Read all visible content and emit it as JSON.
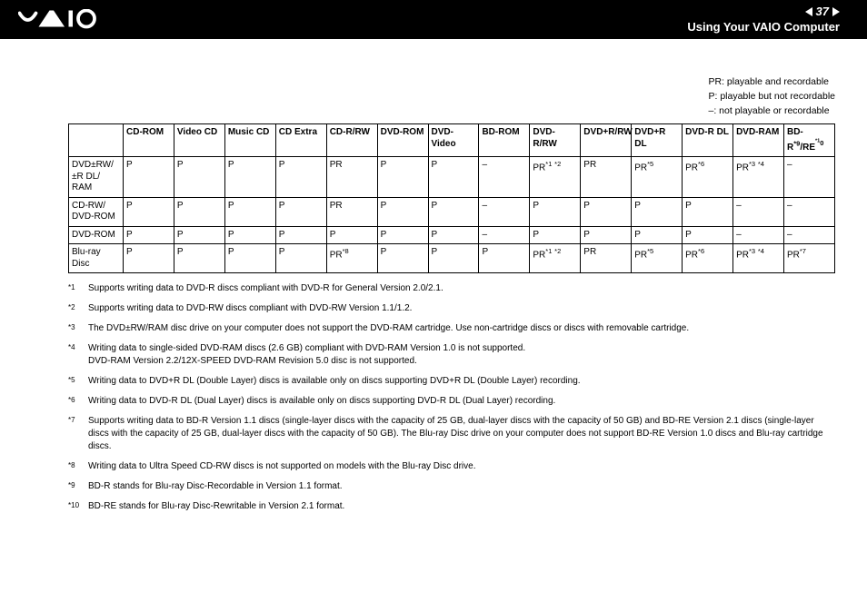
{
  "header": {
    "page_number": "37",
    "section_title": "Using Your VAIO Computer"
  },
  "legend": {
    "line1": "PR: playable and recordable",
    "line2": "P: playable but not recordable",
    "line3": "–: not playable or recordable"
  },
  "table": {
    "columns": [
      "",
      "CD-ROM",
      "Video CD",
      "Music CD",
      "CD Extra",
      "CD-R/RW",
      "DVD-ROM",
      "DVD-Video",
      "BD-ROM",
      "DVD-R/RW",
      "DVD+R/RW",
      "DVD+R DL",
      "DVD-R DL",
      "DVD-RAM",
      "BD-R*9/RE*10"
    ],
    "rows": [
      {
        "label": "DVD±RW/±R DL/RAM",
        "cells": [
          "P",
          "P",
          "P",
          "P",
          "PR",
          "P",
          "P",
          "–",
          "PR*1 *2",
          "PR",
          "PR*5",
          "PR*6",
          "PR*3 *4",
          "–"
        ]
      },
      {
        "label": "CD-RW/DVD-ROM",
        "cells": [
          "P",
          "P",
          "P",
          "P",
          "PR",
          "P",
          "P",
          "–",
          "P",
          "P",
          "P",
          "P",
          "–",
          "–"
        ]
      },
      {
        "label": "DVD-ROM",
        "cells": [
          "P",
          "P",
          "P",
          "P",
          "P",
          "P",
          "P",
          "–",
          "P",
          "P",
          "P",
          "P",
          "–",
          "–"
        ]
      },
      {
        "label": "Blu-ray Disc",
        "cells": [
          "P",
          "P",
          "P",
          "P",
          "PR*8",
          "P",
          "P",
          "P",
          "PR*1 *2",
          "PR",
          "PR*5",
          "PR*6",
          "PR*3 *4",
          "PR*7"
        ]
      }
    ]
  },
  "footnotes": [
    {
      "mark": "*1",
      "text": "Supports writing data to DVD-R discs compliant with DVD-R for General Version 2.0/2.1."
    },
    {
      "mark": "*2",
      "text": "Supports writing data to DVD-RW discs compliant with DVD-RW Version 1.1/1.2."
    },
    {
      "mark": "*3",
      "text": "The DVD±RW/RAM disc drive on your computer does not support the DVD-RAM cartridge. Use non-cartridge discs or discs with removable cartridge."
    },
    {
      "mark": "*4",
      "text": "Writing data to single-sided DVD-RAM discs (2.6 GB) compliant with DVD-RAM Version 1.0 is not supported.\nDVD-RAM Version 2.2/12X-SPEED DVD-RAM Revision 5.0 disc is not supported."
    },
    {
      "mark": "*5",
      "text": "Writing data to DVD+R DL (Double Layer) discs is available only on discs supporting DVD+R DL (Double Layer) recording."
    },
    {
      "mark": "*6",
      "text": "Writing data to DVD-R DL (Dual Layer) discs is available only on discs supporting DVD-R DL (Dual Layer) recording."
    },
    {
      "mark": "*7",
      "text": "Supports writing data to BD-R Version 1.1 discs (single-layer discs with the capacity of 25 GB, dual-layer discs with the capacity of 50 GB) and BD-RE Version 2.1 discs (single-layer discs with the capacity of 25 GB, dual-layer discs with the capacity of 50 GB). The Blu-ray Disc drive on your computer does not support BD-RE Version 1.0 discs and Blu-ray cartridge discs."
    },
    {
      "mark": "*8",
      "text": "Writing data to Ultra Speed CD-RW discs is not supported on models with the Blu-ray Disc drive."
    },
    {
      "mark": "*9",
      "text": "BD-R stands for Blu-ray Disc-Recordable in Version 1.1 format."
    },
    {
      "mark": "*10",
      "text": "BD-RE stands for Blu-ray Disc-Rewritable in Version 2.1 format."
    }
  ]
}
